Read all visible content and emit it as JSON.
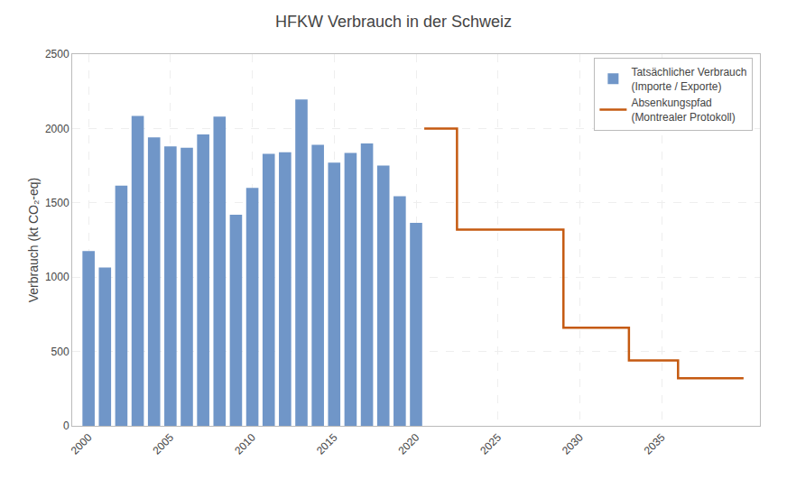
{
  "chart_data": {
    "type": "bar",
    "title": "HFKW Verbrauch in der Schweiz",
    "ylabel": "Verbrauch (kt CO₂-eq)",
    "series": [
      {
        "name": "Tatsächlicher Verbrauch\n(Importe / Exporte)",
        "type": "bar",
        "color": "#7096C8",
        "x": [
          2000,
          2001,
          2002,
          2003,
          2004,
          2005,
          2006,
          2007,
          2008,
          2009,
          2010,
          2011,
          2012,
          2013,
          2014,
          2015,
          2016,
          2017,
          2018,
          2019,
          2020
        ],
        "values": [
          1175,
          1065,
          1615,
          2085,
          1940,
          1880,
          1870,
          1960,
          2080,
          1420,
          1600,
          1830,
          1840,
          2195,
          1890,
          1770,
          1835,
          1900,
          1750,
          1545,
          1365
        ]
      },
      {
        "name": "Absenkungspfad\n(Montrealer Protokoll)",
        "type": "line",
        "color": "#C55A11",
        "x": [
          2020.5,
          2022.5,
          2022.5,
          2024,
          2024,
          2029,
          2029,
          2033,
          2033,
          2036,
          2036,
          2040
        ],
        "values": [
          2000,
          2000,
          1320,
          1320,
          1320,
          1320,
          660,
          660,
          440,
          440,
          320,
          320
        ]
      }
    ],
    "xlim": [
      1999.0,
      2041.0
    ],
    "xticks": [
      2000,
      2005,
      2010,
      2015,
      2020,
      2025,
      2030,
      2035
    ],
    "ylim": [
      0,
      2500
    ],
    "yticks": [
      0,
      500,
      1000,
      1500,
      2000,
      2500
    ],
    "grid": true,
    "legend": "upper right"
  }
}
